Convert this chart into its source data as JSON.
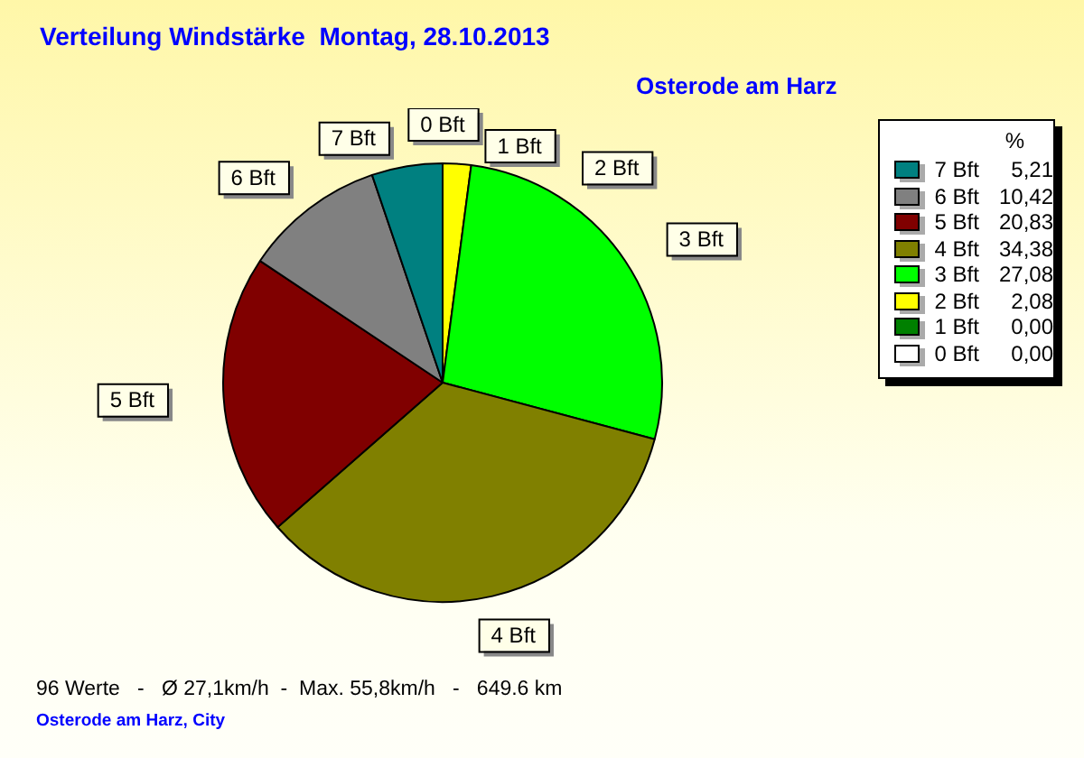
{
  "chart_data": {
    "type": "pie",
    "title": "Verteilung Windstärke  Montag, 28.10.2013",
    "subtitle": "Osterode am Harz",
    "legend_title": "%",
    "categories": [
      "7 Bft",
      "6 Bft",
      "5 Bft",
      "4 Bft",
      "3 Bft",
      "2 Bft",
      "1 Bft",
      "0 Bft"
    ],
    "values": [
      5.21,
      10.42,
      20.83,
      34.38,
      27.08,
      2.08,
      0,
      0
    ],
    "value_labels": [
      "5,21",
      "10,42",
      "20,83",
      "34,38",
      "27,08",
      "2,08",
      "0,00",
      "0,00"
    ],
    "colors": [
      "#008080",
      "#808080",
      "#800000",
      "#808000",
      "#00ff00",
      "#ffff00",
      "#008000",
      "#ffffff"
    ],
    "legend": "right",
    "annotations": [
      "96 Werte   -   Ø 27,1km/h  -  Max. 55,8km/h   -   649.6 km",
      "Osterode am Harz, City"
    ]
  }
}
